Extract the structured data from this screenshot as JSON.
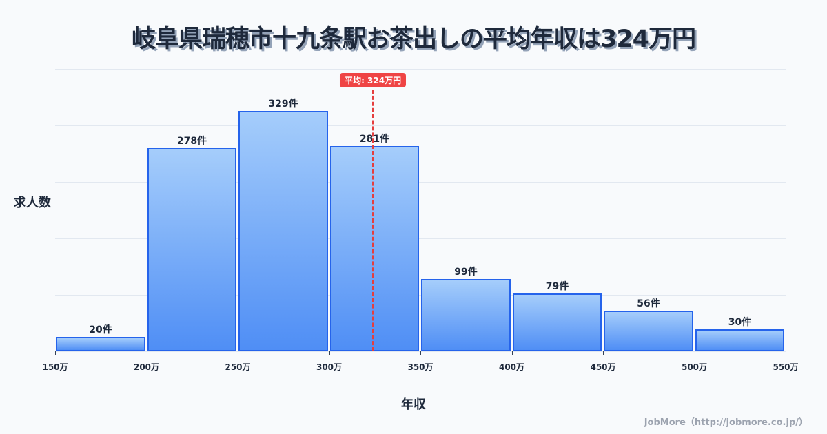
{
  "title": "岐阜県瑞穂市十九条駅お茶出しの平均年収は324万円",
  "y_axis_label": "求人数",
  "x_axis_label": "年収",
  "credit": "JobMore（http://jobmore.co.jp/）",
  "average": {
    "label": "平均: 324万円",
    "value": 324,
    "color": "#ef4444"
  },
  "chart_data": {
    "type": "bar",
    "title": "岐阜県瑞穂市十九条駅お茶出しの平均年収は324万円",
    "xlabel": "年収",
    "ylabel": "求人数",
    "bins": [
      [
        150,
        200
      ],
      [
        200,
        250
      ],
      [
        250,
        300
      ],
      [
        300,
        350
      ],
      [
        350,
        400
      ],
      [
        400,
        450
      ],
      [
        450,
        500
      ],
      [
        500,
        550
      ]
    ],
    "categories": [
      "150-200万",
      "200-250万",
      "250-300万",
      "300-350万",
      "350-400万",
      "400-450万",
      "450-500万",
      "500-550万"
    ],
    "values": [
      20,
      278,
      329,
      281,
      99,
      79,
      56,
      30
    ],
    "value_labels": [
      "20件",
      "278件",
      "329件",
      "281件",
      "99件",
      "79件",
      "56件",
      "30件"
    ],
    "x_ticks": [
      "150万",
      "200万",
      "250万",
      "300万",
      "350万",
      "400万",
      "450万",
      "500万",
      "550万"
    ],
    "xlim": [
      150,
      550
    ],
    "ylim": [
      0,
      386
    ],
    "grid": true,
    "bar_color": "#4f8ef5",
    "bar_border": "#2563eb",
    "annotations": [
      {
        "type": "vline",
        "x": 324,
        "label": "平均: 324万円",
        "color": "#ef4444"
      }
    ]
  }
}
